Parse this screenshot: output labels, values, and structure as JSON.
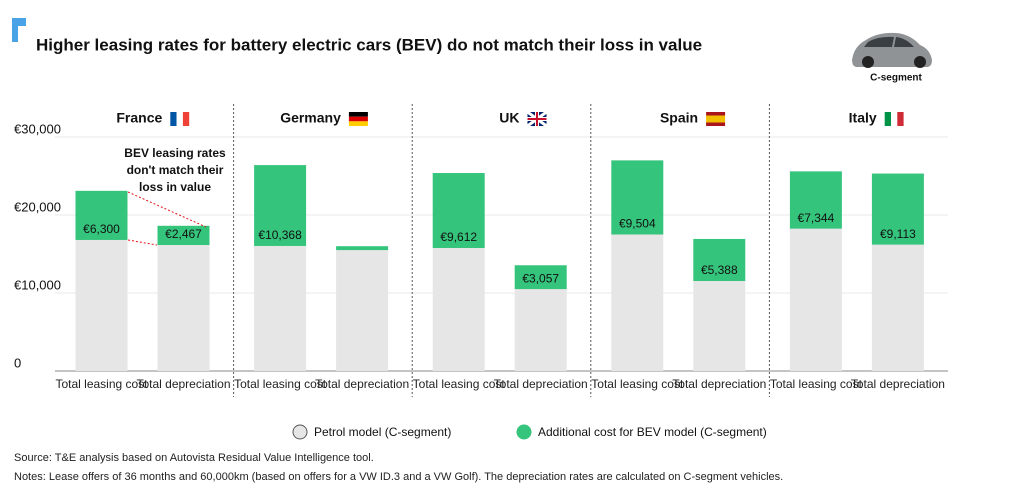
{
  "chart_data": {
    "type": "bar",
    "title": "Higher leasing rates for battery electric cars (BEV) do not match their loss in value",
    "segment_label": "C-segment",
    "groups": [
      "France",
      "Germany",
      "UK",
      "Spain",
      "Italy"
    ],
    "categories": [
      "Total leasing cost",
      "Total depreciation",
      "Total leasing cost",
      "Total depreciation",
      "Total leasing cost",
      "Total depreciation",
      "Total leasing cost",
      "Total depreciation",
      "Total leasing cost",
      "Total depreciation"
    ],
    "series": [
      {
        "name": "Petrol model (C-segment)",
        "color": "#e6e6e6",
        "values": [
          16800,
          16150,
          16030,
          15500,
          15770,
          10500,
          17500,
          11540,
          18250,
          16200
        ]
      },
      {
        "name": "Additional cost for BEV model (C-segment)",
        "color": "#35c47b",
        "values": [
          6300,
          2467,
          10368,
          500,
          9612,
          3057,
          9504,
          5388,
          7344,
          9113
        ],
        "value_labels": [
          "€6,300",
          "€2,467",
          "€10,368",
          null,
          "€9,612",
          "€3,057",
          "€9,504",
          "€5,388",
          "€7,344",
          "€9,113"
        ]
      }
    ],
    "ylim": [
      0,
      30000
    ],
    "yticks": [
      0,
      {
        "value": 10000,
        "label": "€10,000"
      },
      {
        "value": 20000,
        "label": "€20,000"
      },
      {
        "value": 30000,
        "label": "€30,000"
      }
    ],
    "grid": true,
    "annotation": [
      "BEV leasing rates",
      "don't match their",
      "loss in value"
    ],
    "source": "Source: T&E analysis based on Autovista Residual Value Intelligence tool.",
    "notes": "Notes: Lease offers of 36 months and 60,000km (based on offers for a VW ID.3 and a VW Golf). The depreciation rates are calculated on C-segment vehicles."
  }
}
